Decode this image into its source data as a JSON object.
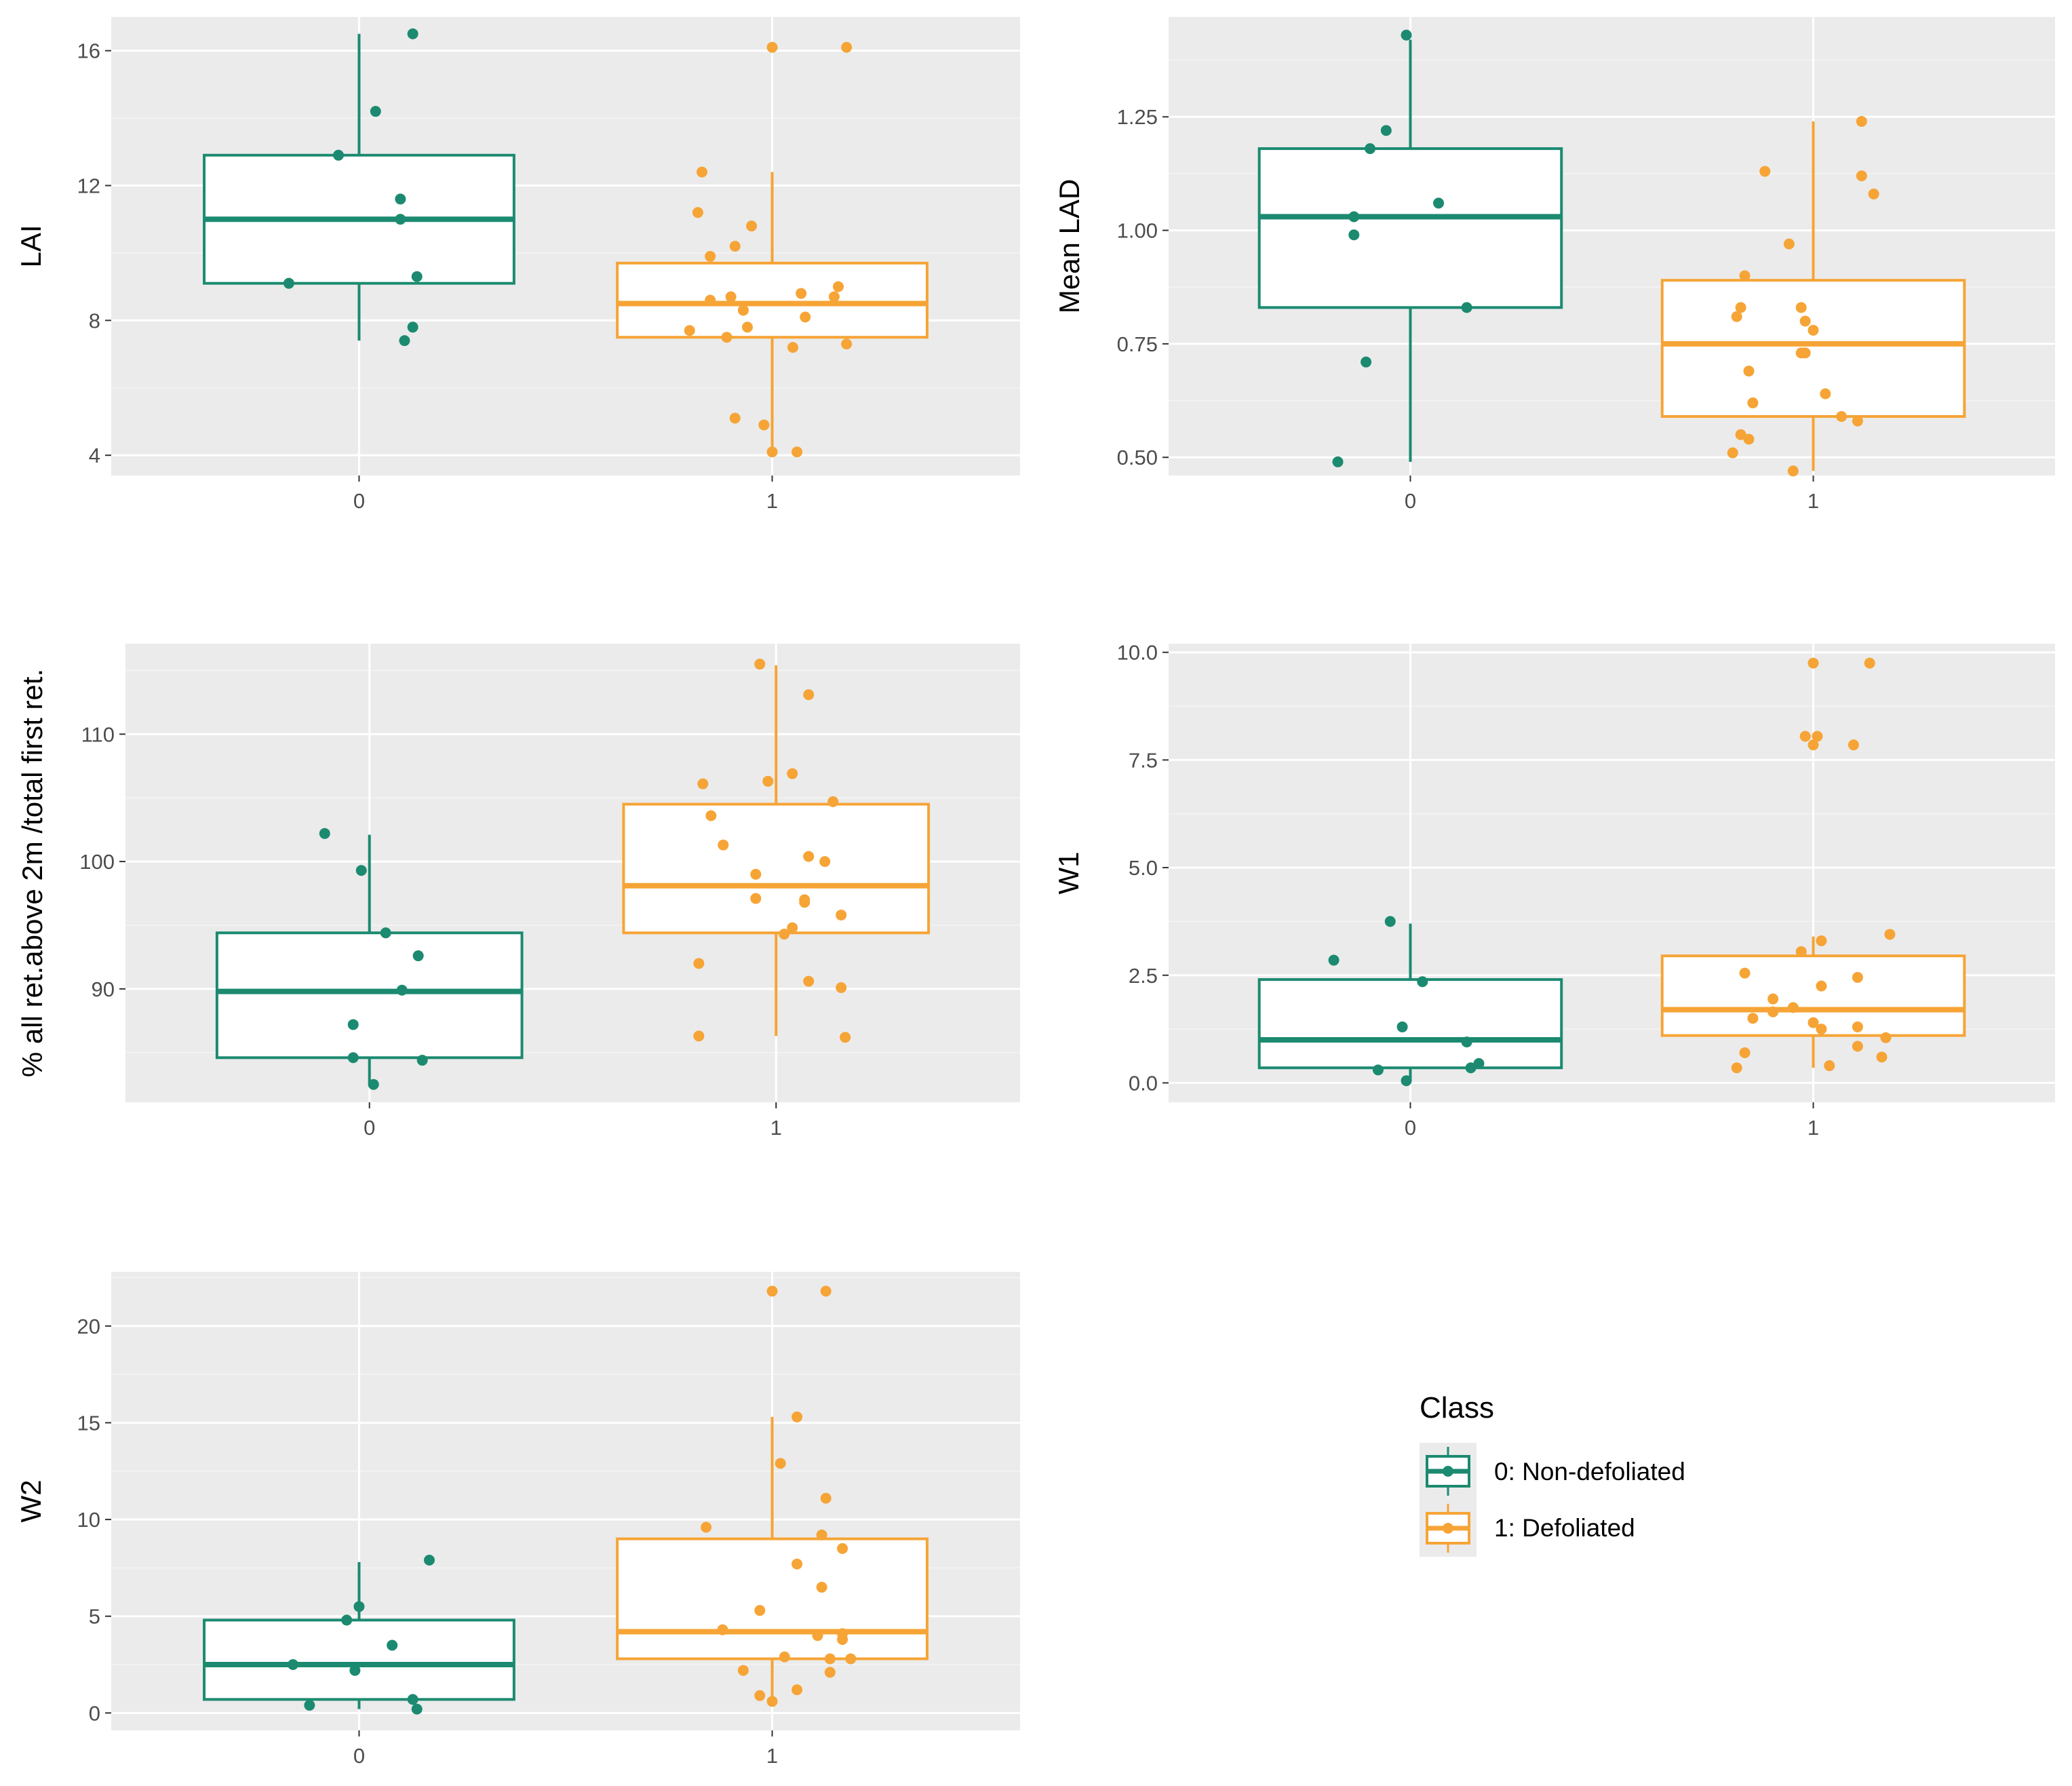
{
  "colors": {
    "non_defoliated": "#1b8a70",
    "defoliated": "#f6a436",
    "panel_bg": "#ebebeb",
    "grid_major": "#ffffff",
    "grid_minor": "#f4f4f4",
    "tick_text": "#4d4d4d"
  },
  "legend": {
    "title": "Class",
    "items": [
      {
        "label": "0: Non-defoliated",
        "color": "#1b8a70"
      },
      {
        "label": "1: Defoliated",
        "color": "#f6a436"
      }
    ]
  },
  "chart_data": [
    {
      "id": "lai",
      "type": "boxplot",
      "ylabel": "LAI",
      "xlabel": "",
      "categories": [
        "0",
        "1"
      ],
      "ylim": [
        3.4,
        17.0
      ],
      "yticks": [
        4,
        8,
        12,
        16
      ],
      "ytick_labels": [
        "4",
        "8",
        "12",
        "16"
      ],
      "boxes": [
        {
          "group": "0",
          "q1": 9.1,
          "median": 11.0,
          "q3": 12.9,
          "whisker_low": 7.4,
          "whisker_high": 16.5
        },
        {
          "group": "1",
          "q1": 7.5,
          "median": 8.5,
          "q3": 9.7,
          "whisker_low": 4.1,
          "whisker_high": 12.4
        }
      ],
      "points": [
        {
          "group": "0",
          "jitter": 0.13,
          "y": 16.5
        },
        {
          "group": "0",
          "jitter": 0.04,
          "y": 14.2
        },
        {
          "group": "0",
          "jitter": -0.05,
          "y": 12.9
        },
        {
          "group": "0",
          "jitter": 0.1,
          "y": 11.6
        },
        {
          "group": "0",
          "jitter": 0.1,
          "y": 11.0
        },
        {
          "group": "0",
          "jitter": 0.14,
          "y": 9.3
        },
        {
          "group": "0",
          "jitter": -0.17,
          "y": 9.1
        },
        {
          "group": "0",
          "jitter": 0.13,
          "y": 7.8
        },
        {
          "group": "0",
          "jitter": 0.11,
          "y": 7.4
        },
        {
          "group": "1",
          "jitter": 0.0,
          "y": 16.1
        },
        {
          "group": "1",
          "jitter": 0.18,
          "y": 16.1
        },
        {
          "group": "1",
          "jitter": -0.17,
          "y": 12.4
        },
        {
          "group": "1",
          "jitter": -0.18,
          "y": 11.2
        },
        {
          "group": "1",
          "jitter": -0.05,
          "y": 10.8
        },
        {
          "group": "1",
          "jitter": -0.09,
          "y": 10.2
        },
        {
          "group": "1",
          "jitter": -0.15,
          "y": 9.9
        },
        {
          "group": "1",
          "jitter": 0.16,
          "y": 9.0
        },
        {
          "group": "1",
          "jitter": 0.07,
          "y": 8.8
        },
        {
          "group": "1",
          "jitter": -0.1,
          "y": 8.7
        },
        {
          "group": "1",
          "jitter": 0.15,
          "y": 8.7
        },
        {
          "group": "1",
          "jitter": -0.15,
          "y": 8.6
        },
        {
          "group": "1",
          "jitter": -0.07,
          "y": 8.3
        },
        {
          "group": "1",
          "jitter": 0.08,
          "y": 8.1
        },
        {
          "group": "1",
          "jitter": -0.06,
          "y": 7.8
        },
        {
          "group": "1",
          "jitter": -0.2,
          "y": 7.7
        },
        {
          "group": "1",
          "jitter": -0.11,
          "y": 7.5
        },
        {
          "group": "1",
          "jitter": 0.18,
          "y": 7.3
        },
        {
          "group": "1",
          "jitter": 0.05,
          "y": 7.2
        },
        {
          "group": "1",
          "jitter": -0.09,
          "y": 5.1
        },
        {
          "group": "1",
          "jitter": -0.02,
          "y": 4.9
        },
        {
          "group": "1",
          "jitter": 0.0,
          "y": 4.1
        },
        {
          "group": "1",
          "jitter": 0.06,
          "y": 4.1
        }
      ]
    },
    {
      "id": "mean-lad",
      "type": "boxplot",
      "ylabel": "Mean LAD",
      "xlabel": "",
      "categories": [
        "0",
        "1"
      ],
      "ylim": [
        0.46,
        1.47
      ],
      "yticks": [
        0.5,
        0.75,
        1.0,
        1.25
      ],
      "ytick_labels": [
        "0.50",
        "0.75",
        "1.00",
        "1.25"
      ],
      "boxes": [
        {
          "group": "0",
          "q1": 0.83,
          "median": 1.03,
          "q3": 1.18,
          "whisker_low": 0.49,
          "whisker_high": 1.42
        },
        {
          "group": "1",
          "q1": 0.59,
          "median": 0.75,
          "q3": 0.89,
          "whisker_low": 0.47,
          "whisker_high": 1.24
        }
      ],
      "points": [
        {
          "group": "0",
          "jitter": -0.01,
          "y": 1.43
        },
        {
          "group": "0",
          "jitter": -0.06,
          "y": 1.22
        },
        {
          "group": "0",
          "jitter": -0.1,
          "y": 1.18
        },
        {
          "group": "0",
          "jitter": 0.07,
          "y": 1.06
        },
        {
          "group": "0",
          "jitter": -0.14,
          "y": 1.03
        },
        {
          "group": "0",
          "jitter": -0.14,
          "y": 0.99
        },
        {
          "group": "0",
          "jitter": 0.14,
          "y": 0.83
        },
        {
          "group": "0",
          "jitter": -0.11,
          "y": 0.71
        },
        {
          "group": "0",
          "jitter": -0.18,
          "y": 0.49
        },
        {
          "group": "1",
          "jitter": 0.12,
          "y": 1.24
        },
        {
          "group": "1",
          "jitter": -0.12,
          "y": 1.13
        },
        {
          "group": "1",
          "jitter": 0.12,
          "y": 1.12
        },
        {
          "group": "1",
          "jitter": 0.15,
          "y": 1.08
        },
        {
          "group": "1",
          "jitter": -0.06,
          "y": 0.97
        },
        {
          "group": "1",
          "jitter": -0.17,
          "y": 0.9
        },
        {
          "group": "1",
          "jitter": -0.18,
          "y": 0.83
        },
        {
          "group": "1",
          "jitter": -0.03,
          "y": 0.83
        },
        {
          "group": "1",
          "jitter": -0.19,
          "y": 0.81
        },
        {
          "group": "1",
          "jitter": -0.02,
          "y": 0.8
        },
        {
          "group": "1",
          "jitter": 0.0,
          "y": 0.78
        },
        {
          "group": "1",
          "jitter": -0.02,
          "y": 0.73
        },
        {
          "group": "1",
          "jitter": -0.03,
          "y": 0.73
        },
        {
          "group": "1",
          "jitter": -0.16,
          "y": 0.69
        },
        {
          "group": "1",
          "jitter": 0.03,
          "y": 0.64
        },
        {
          "group": "1",
          "jitter": -0.15,
          "y": 0.62
        },
        {
          "group": "1",
          "jitter": 0.07,
          "y": 0.59
        },
        {
          "group": "1",
          "jitter": 0.11,
          "y": 0.58
        },
        {
          "group": "1",
          "jitter": -0.18,
          "y": 0.55
        },
        {
          "group": "1",
          "jitter": -0.16,
          "y": 0.54
        },
        {
          "group": "1",
          "jitter": -0.2,
          "y": 0.51
        },
        {
          "group": "1",
          "jitter": -0.05,
          "y": 0.47
        }
      ]
    },
    {
      "id": "pct-returns",
      "type": "boxplot",
      "ylabel": "% all ret.above 2m /total first ret.",
      "xlabel": "",
      "categories": [
        "0",
        "1"
      ],
      "ylim": [
        81.1,
        117.1
      ],
      "yticks": [
        90,
        100,
        110
      ],
      "ytick_labels": [
        "90",
        "100",
        "110"
      ],
      "boxes": [
        {
          "group": "0",
          "q1": 84.6,
          "median": 89.8,
          "q3": 94.4,
          "whisker_low": 82.5,
          "whisker_high": 102.1
        },
        {
          "group": "1",
          "q1": 94.4,
          "median": 98.1,
          "q3": 104.5,
          "whisker_low": 86.3,
          "whisker_high": 115.4
        }
      ],
      "points": [
        {
          "group": "0",
          "jitter": -0.11,
          "y": 102.2
        },
        {
          "group": "0",
          "jitter": -0.02,
          "y": 99.3
        },
        {
          "group": "0",
          "jitter": 0.04,
          "y": 94.4
        },
        {
          "group": "0",
          "jitter": 0.12,
          "y": 92.6
        },
        {
          "group": "0",
          "jitter": 0.08,
          "y": 89.9
        },
        {
          "group": "0",
          "jitter": -0.04,
          "y": 87.2
        },
        {
          "group": "0",
          "jitter": -0.04,
          "y": 84.6
        },
        {
          "group": "0",
          "jitter": 0.13,
          "y": 84.4
        },
        {
          "group": "0",
          "jitter": 0.01,
          "y": 82.5
        },
        {
          "group": "1",
          "jitter": -0.04,
          "y": 115.5
        },
        {
          "group": "1",
          "jitter": 0.08,
          "y": 113.1
        },
        {
          "group": "1",
          "jitter": 0.04,
          "y": 106.9
        },
        {
          "group": "1",
          "jitter": -0.02,
          "y": 106.3
        },
        {
          "group": "1",
          "jitter": -0.18,
          "y": 106.1
        },
        {
          "group": "1",
          "jitter": 0.14,
          "y": 104.7
        },
        {
          "group": "1",
          "jitter": -0.16,
          "y": 103.6
        },
        {
          "group": "1",
          "jitter": -0.13,
          "y": 101.3
        },
        {
          "group": "1",
          "jitter": 0.08,
          "y": 100.4
        },
        {
          "group": "1",
          "jitter": 0.12,
          "y": 100.0
        },
        {
          "group": "1",
          "jitter": -0.05,
          "y": 99.0
        },
        {
          "group": "1",
          "jitter": -0.05,
          "y": 97.1
        },
        {
          "group": "1",
          "jitter": 0.07,
          "y": 97.0
        },
        {
          "group": "1",
          "jitter": 0.07,
          "y": 96.8
        },
        {
          "group": "1",
          "jitter": 0.16,
          "y": 95.8
        },
        {
          "group": "1",
          "jitter": 0.04,
          "y": 94.8
        },
        {
          "group": "1",
          "jitter": 0.02,
          "y": 94.3
        },
        {
          "group": "1",
          "jitter": -0.19,
          "y": 92.0
        },
        {
          "group": "1",
          "jitter": 0.08,
          "y": 90.6
        },
        {
          "group": "1",
          "jitter": 0.16,
          "y": 90.1
        },
        {
          "group": "1",
          "jitter": -0.19,
          "y": 86.3
        },
        {
          "group": "1",
          "jitter": 0.17,
          "y": 86.2
        }
      ]
    },
    {
      "id": "w1",
      "type": "boxplot",
      "ylabel": "W1",
      "xlabel": "",
      "categories": [
        "0",
        "1"
      ],
      "ylim": [
        -0.45,
        10.2
      ],
      "yticks": [
        0.0,
        2.5,
        5.0,
        7.5,
        10.0
      ],
      "ytick_labels": [
        "0.0",
        "2.5",
        "5.0",
        "7.5",
        "10.0"
      ],
      "boxes": [
        {
          "group": "0",
          "q1": 0.35,
          "median": 1.0,
          "q3": 2.4,
          "whisker_low": 0.05,
          "whisker_high": 3.7
        },
        {
          "group": "1",
          "q1": 1.1,
          "median": 1.7,
          "q3": 2.95,
          "whisker_low": 0.35,
          "whisker_high": 3.4
        }
      ],
      "points": [
        {
          "group": "0",
          "jitter": -0.05,
          "y": 3.75
        },
        {
          "group": "0",
          "jitter": -0.19,
          "y": 2.85
        },
        {
          "group": "0",
          "jitter": 0.03,
          "y": 2.35
        },
        {
          "group": "0",
          "jitter": -0.02,
          "y": 1.3
        },
        {
          "group": "0",
          "jitter": 0.14,
          "y": 0.95
        },
        {
          "group": "0",
          "jitter": 0.17,
          "y": 0.45
        },
        {
          "group": "0",
          "jitter": 0.15,
          "y": 0.35
        },
        {
          "group": "0",
          "jitter": -0.08,
          "y": 0.3
        },
        {
          "group": "0",
          "jitter": -0.01,
          "y": 0.05
        },
        {
          "group": "1",
          "jitter": 0.0,
          "y": 9.75
        },
        {
          "group": "1",
          "jitter": 0.14,
          "y": 9.75
        },
        {
          "group": "1",
          "jitter": -0.02,
          "y": 8.05
        },
        {
          "group": "1",
          "jitter": 0.01,
          "y": 8.05
        },
        {
          "group": "1",
          "jitter": 0.0,
          "y": 7.85
        },
        {
          "group": "1",
          "jitter": 0.1,
          "y": 7.85
        },
        {
          "group": "1",
          "jitter": 0.19,
          "y": 3.45
        },
        {
          "group": "1",
          "jitter": 0.02,
          "y": 3.3
        },
        {
          "group": "1",
          "jitter": -0.03,
          "y": 3.05
        },
        {
          "group": "1",
          "jitter": -0.17,
          "y": 2.55
        },
        {
          "group": "1",
          "jitter": 0.11,
          "y": 2.45
        },
        {
          "group": "1",
          "jitter": 0.02,
          "y": 2.25
        },
        {
          "group": "1",
          "jitter": -0.1,
          "y": 1.95
        },
        {
          "group": "1",
          "jitter": -0.05,
          "y": 1.75
        },
        {
          "group": "1",
          "jitter": -0.1,
          "y": 1.65
        },
        {
          "group": "1",
          "jitter": -0.15,
          "y": 1.5
        },
        {
          "group": "1",
          "jitter": 0.0,
          "y": 1.4
        },
        {
          "group": "1",
          "jitter": 0.11,
          "y": 1.3
        },
        {
          "group": "1",
          "jitter": 0.02,
          "y": 1.25
        },
        {
          "group": "1",
          "jitter": 0.18,
          "y": 1.05
        },
        {
          "group": "1",
          "jitter": 0.11,
          "y": 0.85
        },
        {
          "group": "1",
          "jitter": -0.17,
          "y": 0.7
        },
        {
          "group": "1",
          "jitter": 0.17,
          "y": 0.6
        },
        {
          "group": "1",
          "jitter": 0.04,
          "y": 0.4
        },
        {
          "group": "1",
          "jitter": -0.19,
          "y": 0.35
        }
      ]
    },
    {
      "id": "w2",
      "type": "boxplot",
      "ylabel": "W2",
      "xlabel": "",
      "categories": [
        "0",
        "1"
      ],
      "ylim": [
        -0.9,
        22.8
      ],
      "yticks": [
        0,
        5,
        10,
        15,
        20
      ],
      "ytick_labels": [
        "0",
        "5",
        "10",
        "15",
        "20"
      ],
      "boxes": [
        {
          "group": "0",
          "q1": 0.7,
          "median": 2.5,
          "q3": 4.8,
          "whisker_low": 0.2,
          "whisker_high": 7.8
        },
        {
          "group": "1",
          "q1": 2.8,
          "median": 4.2,
          "q3": 9.0,
          "whisker_low": 0.5,
          "whisker_high": 15.3
        }
      ],
      "points": [
        {
          "group": "0",
          "jitter": 0.17,
          "y": 7.9
        },
        {
          "group": "0",
          "jitter": 0.0,
          "y": 5.5
        },
        {
          "group": "0",
          "jitter": -0.03,
          "y": 4.8
        },
        {
          "group": "0",
          "jitter": 0.08,
          "y": 3.5
        },
        {
          "group": "0",
          "jitter": -0.16,
          "y": 2.5
        },
        {
          "group": "0",
          "jitter": -0.01,
          "y": 2.2
        },
        {
          "group": "0",
          "jitter": 0.13,
          "y": 0.7
        },
        {
          "group": "0",
          "jitter": -0.12,
          "y": 0.4
        },
        {
          "group": "0",
          "jitter": 0.14,
          "y": 0.2
        },
        {
          "group": "1",
          "jitter": 0.0,
          "y": 21.8
        },
        {
          "group": "1",
          "jitter": 0.13,
          "y": 21.8
        },
        {
          "group": "1",
          "jitter": 0.06,
          "y": 15.3
        },
        {
          "group": "1",
          "jitter": 0.02,
          "y": 12.9
        },
        {
          "group": "1",
          "jitter": 0.13,
          "y": 11.1
        },
        {
          "group": "1",
          "jitter": -0.16,
          "y": 9.6
        },
        {
          "group": "1",
          "jitter": 0.12,
          "y": 9.2
        },
        {
          "group": "1",
          "jitter": 0.17,
          "y": 8.5
        },
        {
          "group": "1",
          "jitter": 0.06,
          "y": 7.7
        },
        {
          "group": "1",
          "jitter": 0.12,
          "y": 6.5
        },
        {
          "group": "1",
          "jitter": -0.03,
          "y": 5.3
        },
        {
          "group": "1",
          "jitter": -0.12,
          "y": 4.3
        },
        {
          "group": "1",
          "jitter": 0.17,
          "y": 4.1
        },
        {
          "group": "1",
          "jitter": 0.11,
          "y": 4.0
        },
        {
          "group": "1",
          "jitter": 0.17,
          "y": 3.8
        },
        {
          "group": "1",
          "jitter": 0.03,
          "y": 2.9
        },
        {
          "group": "1",
          "jitter": 0.19,
          "y": 2.8
        },
        {
          "group": "1",
          "jitter": 0.14,
          "y": 2.8
        },
        {
          "group": "1",
          "jitter": -0.07,
          "y": 2.2
        },
        {
          "group": "1",
          "jitter": 0.14,
          "y": 2.1
        },
        {
          "group": "1",
          "jitter": 0.06,
          "y": 1.2
        },
        {
          "group": "1",
          "jitter": -0.03,
          "y": 0.9
        },
        {
          "group": "1",
          "jitter": 0.0,
          "y": 0.6
        }
      ]
    }
  ]
}
